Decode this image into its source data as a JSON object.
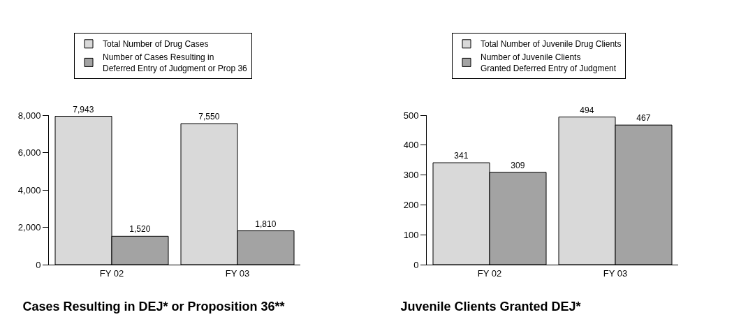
{
  "chart_data": [
    {
      "type": "bar",
      "title": "Cases Resulting in DEJ* or Proposition 36**",
      "categories": [
        "FY 02",
        "FY 03"
      ],
      "series": [
        {
          "name": "Total Number of Drug Cases",
          "color": "#d9d9d9",
          "values": [
            7943,
            7550
          ],
          "value_labels": [
            "7,943",
            "7,550"
          ]
        },
        {
          "name": "Number of Cases Resulting in Deferred Entry of Judgment or Prop 36",
          "color": "#a3a3a3",
          "values": [
            1520,
            1810
          ],
          "value_labels": [
            "1,520",
            "1,810"
          ]
        }
      ],
      "ylim": [
        0,
        8000
      ],
      "yticks": [
        {
          "value": 0,
          "label": "0"
        },
        {
          "value": 2000,
          "label": "2,000"
        },
        {
          "value": 4000,
          "label": "4,000"
        },
        {
          "value": 6000,
          "label": "6,000"
        },
        {
          "value": 8000,
          "label": "8,000"
        }
      ],
      "grid": false,
      "legend": "top"
    },
    {
      "type": "bar",
      "title": "Juvenile Clients Granted DEJ*",
      "categories": [
        "FY 02",
        "FY 03"
      ],
      "series": [
        {
          "name": "Total Number of Juvenile Drug Clients",
          "color": "#d9d9d9",
          "values": [
            341,
            494
          ]
        },
        {
          "name": "Number of Juvenile Clients Granted Deferred Entry of Judgment",
          "color": "#a3a3a3",
          "values": [
            309,
            467
          ]
        }
      ],
      "ylim": [
        0,
        500
      ],
      "yticks": [
        0,
        100,
        200,
        300,
        400,
        500
      ],
      "data_labels": true,
      "grid": false,
      "legend": "top"
    }
  ]
}
